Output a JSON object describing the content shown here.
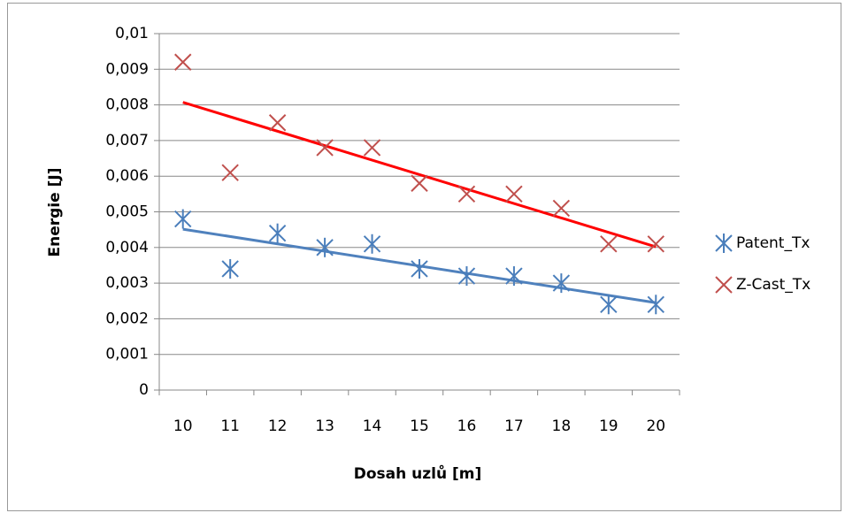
{
  "chart_data": {
    "type": "scatter",
    "x_label": "Dosah uzlů [m]",
    "y_label": "Energie [J]",
    "categories": [
      "10",
      "11",
      "12",
      "13",
      "14",
      "15",
      "16",
      "17",
      "18",
      "19",
      "20"
    ],
    "series": [
      {
        "name": "Patent_Tx",
        "color": "#4a7ebb",
        "marker": "asterisk",
        "trendline": true,
        "trendline_color": "#4f81bd",
        "values": [
          0.0048,
          0.0034,
          0.0044,
          0.004,
          0.0041,
          0.0034,
          0.0032,
          0.0032,
          0.003,
          0.0024,
          0.0024
        ]
      },
      {
        "name": "Z-Cast_Tx",
        "color": "#c0504d",
        "marker": "x",
        "trendline": true,
        "trendline_color": "#ff0000",
        "values": [
          0.0092,
          0.0061,
          0.0075,
          0.0068,
          0.0068,
          0.0058,
          0.0055,
          0.0055,
          0.0051,
          0.0041,
          0.0041
        ]
      }
    ],
    "ylim": [
      0,
      0.01
    ],
    "yticks": [
      0,
      {
        "value": 0.001,
        "label": "0,001"
      },
      {
        "value": 0.002,
        "label": "0,002"
      },
      {
        "value": 0.003,
        "label": "0,003"
      },
      {
        "value": 0.004,
        "label": "0,004"
      },
      {
        "value": 0.005,
        "label": "0,005"
      },
      {
        "value": 0.006,
        "label": "0,006"
      },
      {
        "value": 0.007,
        "label": "0,007"
      },
      {
        "value": 0.008,
        "label": "0,008"
      },
      {
        "value": 0.009,
        "label": "0,009"
      },
      {
        "value": 0.01,
        "label": "0,01"
      }
    ],
    "grid": true,
    "legend": "right"
  }
}
